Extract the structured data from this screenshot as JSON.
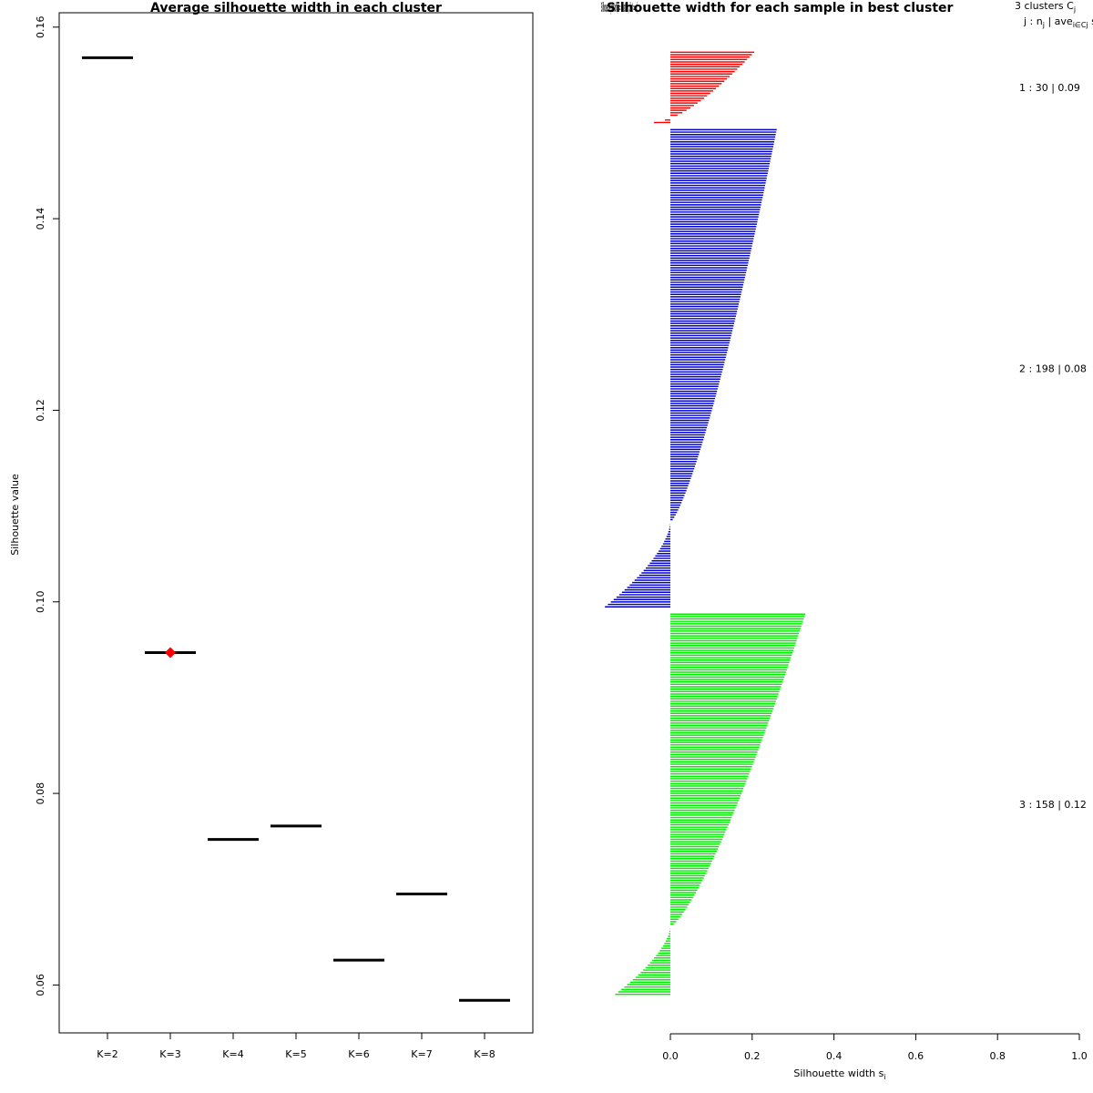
{
  "chart_data": [
    {
      "type": "scatter",
      "title": "Average silhouette width in each cluster",
      "xlabel": "",
      "ylabel": "Silhouette value",
      "ylim": [
        0.055,
        0.1615
      ],
      "yticks": [
        "0.06",
        "0.08",
        "0.10",
        "0.12",
        "0.14",
        "0.16"
      ],
      "ytick_values": [
        0.06,
        0.08,
        0.1,
        0.12,
        0.14,
        0.16
      ],
      "categories": [
        "K=2",
        "K=3",
        "K=4",
        "K=5",
        "K=6",
        "K=7",
        "K=8"
      ],
      "values": [
        0.1568,
        0.0947,
        0.0752,
        0.0766,
        0.0626,
        0.0695,
        0.0584
      ],
      "best_k": "K=3",
      "best_color": "#ff0000",
      "line_color": "#000000"
    },
    {
      "type": "bar",
      "title": "Silhouette width for each sample in best cluster",
      "title_overlap": "Silhouette plot of (x = clusters, dist = ...)",
      "xlabel": "Silhouette width s",
      "xlabel_sub": "i",
      "xlim": [
        0.0,
        1.0
      ],
      "xticks": [
        "0.0",
        "0.2",
        "0.4",
        "0.6",
        "0.8",
        "1.0"
      ],
      "xtick_values": [
        0.0,
        0.2,
        0.4,
        0.6,
        0.8,
        1.0
      ],
      "header_line1": "3  clusters  C",
      "header_line1_sub": "j",
      "header_line2": "j :  n",
      "header_line2_mid": "  |  ave",
      "header_line2_sub2": "i∈Cj",
      "header_line2_end": "  s",
      "clusters": [
        {
          "name": "1",
          "n": 30,
          "avg": "0.09",
          "label": "1 :   30  |  0.09",
          "color": "#ff0000",
          "max": 0.205,
          "min": -0.04,
          "n_neg": 2
        },
        {
          "name": "2",
          "n": 198,
          "avg": "0.08",
          "label": "2 :   198  |  0.08",
          "color": "#0000cd",
          "max": 0.26,
          "min": -0.16,
          "n_neg": 35
        },
        {
          "name": "3",
          "n": 158,
          "avg": "0.12",
          "label": "3 :   158  |  0.12",
          "color": "#00ee00",
          "max": 0.33,
          "min": -0.135,
          "n_neg": 28
        }
      ]
    }
  ]
}
